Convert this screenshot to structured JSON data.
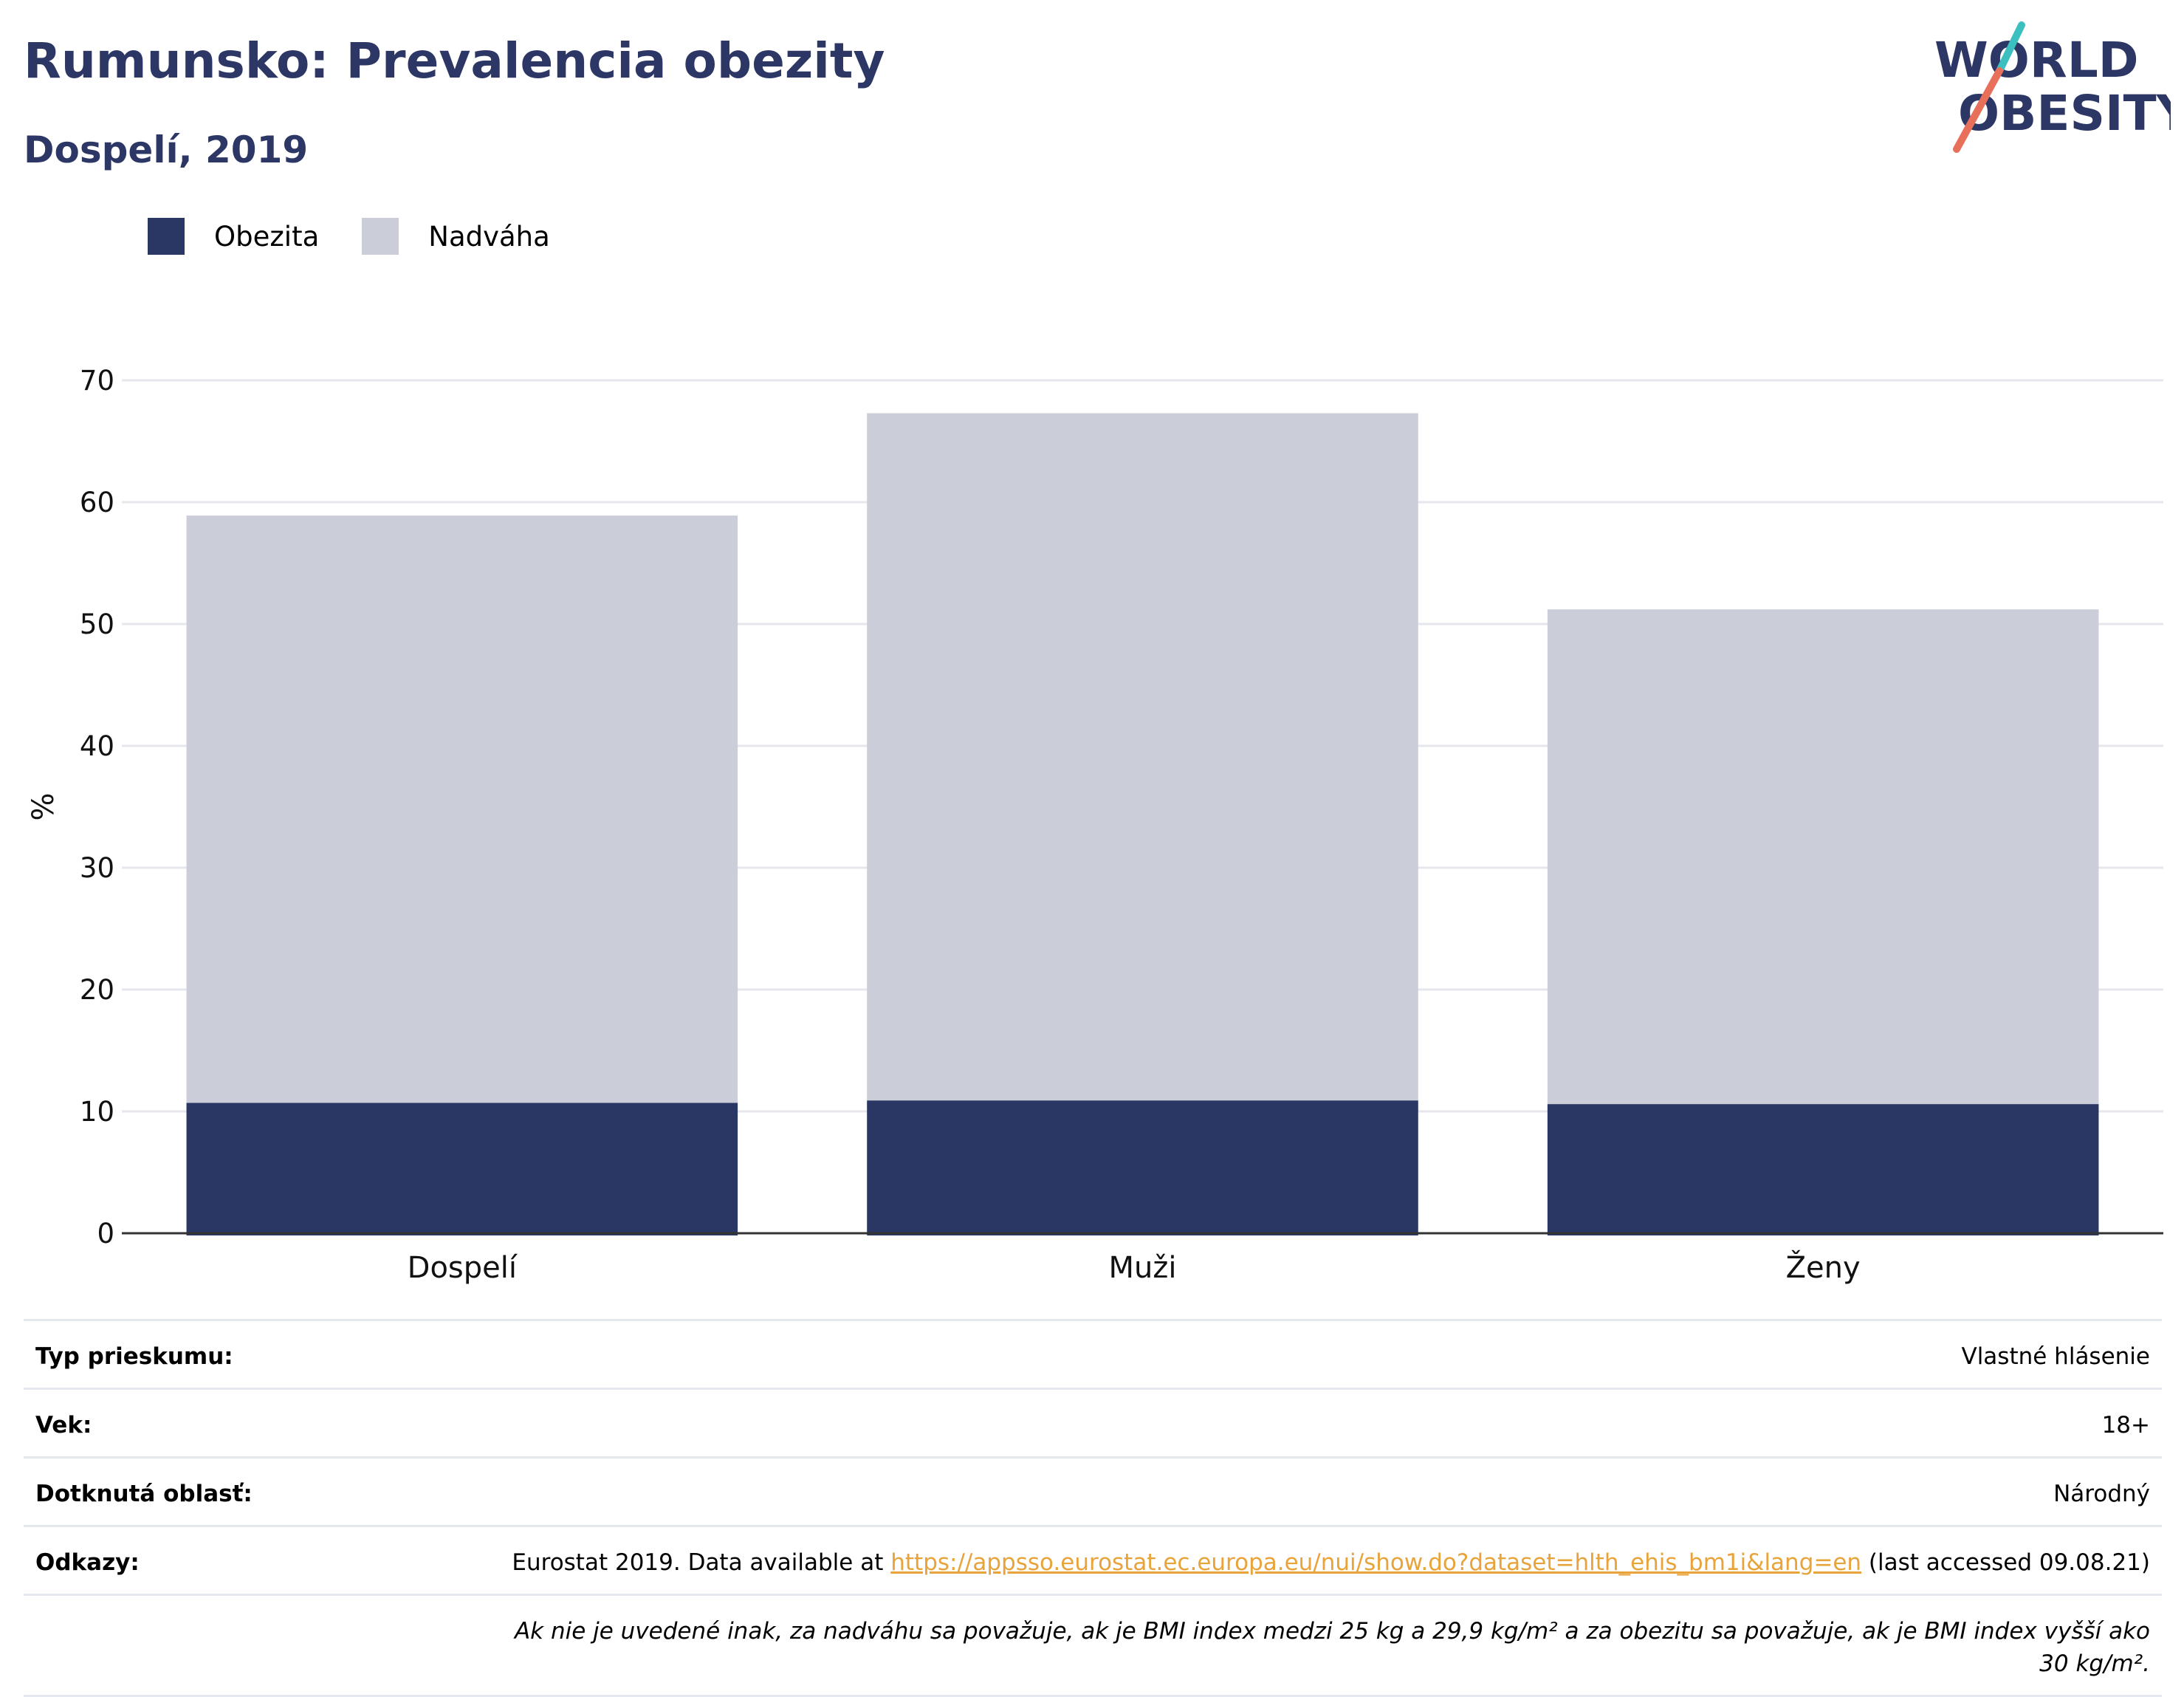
{
  "header": {
    "title": "Rumunsko: Prevalencia obezity",
    "subtitle": "Dospelí, 2019"
  },
  "logo": {
    "line1": "WORLD",
    "line2": "OBESITY",
    "text_color": "#2c3766",
    "slash_top_color": "#3bbfbf",
    "slash_bottom_color": "#e8705a"
  },
  "colors": {
    "obesity": "#2a3663",
    "overweight": "#cbcdd8",
    "axis": "#333333",
    "grid": "#e6e7ec"
  },
  "chart_data": {
    "type": "bar",
    "stacked": true,
    "categories": [
      "Dospelí",
      "Muži",
      "Ženy"
    ],
    "series": [
      {
        "name": "Obezita",
        "values": [
          10.7,
          10.9,
          10.6
        ]
      },
      {
        "name": "Nadváha",
        "values": [
          48.2,
          56.4,
          40.6
        ]
      }
    ],
    "ylabel": "%",
    "xlabel": "",
    "ylim": [
      0,
      70
    ],
    "yticks": [
      0,
      10,
      20,
      30,
      40,
      50,
      60,
      70
    ],
    "grid": true,
    "legend_position": "top-left"
  },
  "info": {
    "survey_label": "Typ prieskumu:",
    "survey_value": "Vlastné hlásenie",
    "age_label": "Vek:",
    "age_value": "18+",
    "area_label": "Dotknutá oblasť:",
    "area_value": "Národný",
    "refs_label": "Odkazy:",
    "refs_prefix": "Eurostat 2019. Data available at ",
    "refs_link": "https://appsso.eurostat.ec.europa.eu/nui/show.do?dataset=hlth_ehis_bm1i&lang=en",
    "refs_suffix": " (last accessed 09.08.21)",
    "note": "Ak nie je uvedené inak, za nadváhu sa považuje, ak je BMI index medzi 25 kg a 29,9 kg/m² a za obezitu sa považuje, ak je BMI index vyšší ako 30 kg/m²."
  }
}
